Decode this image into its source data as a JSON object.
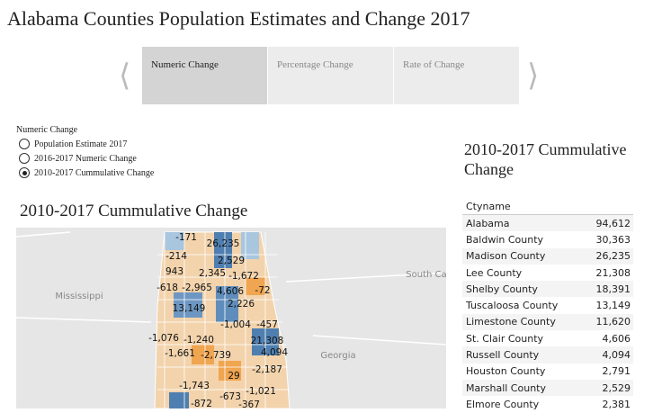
{
  "title": "Alabama Counties Population Estimates and Change 2017",
  "tabs": [
    "Numeric Change",
    "Percentage Change",
    "Rate of Change"
  ],
  "active_tab": 0,
  "filter": {
    "label": "Numeric Change",
    "options": [
      "Population Estimate 2017",
      "2016-2017 Numeric Change",
      "2010-2017 Cummulative Change"
    ],
    "selected": 2
  },
  "map": {
    "title": "2010-2017 Cummulative Change",
    "place_labels": [
      "Mississippi",
      "Georgia",
      "South Carolina"
    ],
    "county_labels": [
      "-171",
      "26,235",
      "-214",
      "2,529",
      "943",
      "2,345",
      "-1,672",
      "-618",
      "-2,965",
      "4,606",
      "-72",
      "13,149",
      "2,226",
      "-1,004",
      "-457",
      "-1,076",
      "-1,240",
      "21,308",
      "-1,661",
      "-2,739",
      "4,094",
      "29",
      "-2,187",
      "-1,743",
      "-673",
      "-1,021",
      "-872",
      "-367"
    ]
  },
  "table": {
    "title": "2010-2017 Cummulative Change",
    "header": "Ctyname",
    "rows": [
      [
        "Alabama",
        "94,612"
      ],
      [
        "Baldwin County",
        "30,363"
      ],
      [
        "Madison County",
        "26,235"
      ],
      [
        "Lee County",
        "21,308"
      ],
      [
        "Shelby County",
        "18,391"
      ],
      [
        "Tuscaloosa County",
        "13,149"
      ],
      [
        "Limestone County",
        "11,620"
      ],
      [
        "St. Clair County",
        "4,606"
      ],
      [
        "Russell County",
        "4,094"
      ],
      [
        "Houston County",
        "2,791"
      ],
      [
        "Marshall County",
        "2,529"
      ],
      [
        "Elmore County",
        "2,381"
      ]
    ]
  }
}
